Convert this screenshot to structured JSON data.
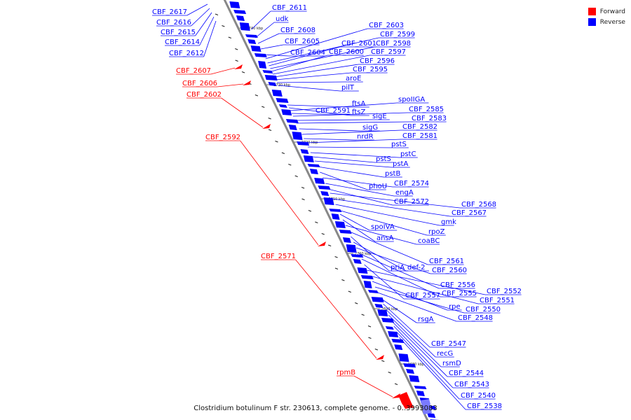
{
  "legend": {
    "items": [
      {
        "label": "Forward",
        "color": "#ff0000"
      },
      {
        "label": "Reverse",
        "color": "#0000ff"
      }
    ]
  },
  "caption": "Clostridium botulinum F str. 230613, complete genome. - 0..3993083",
  "colors": {
    "forward": "#ff0000",
    "reverse": "#0000ff",
    "backbone": "#888888"
  },
  "ticks": [
    "2740 kbp",
    "2730 kbp",
    "2720 kbp",
    "2710 kbp",
    "2700 kbp",
    "2690 kbp",
    "2680 kbp"
  ],
  "reverse_labels": [
    "CBF_2611",
    "udk",
    "CBF_2608",
    "CBF_2605",
    "CBF_2604",
    "CBF_2603",
    "CBF_2599",
    "CBF_2601",
    "CBF_2598",
    "CBF_2600",
    "CBF_2597",
    "CBF_2596",
    "CBF_2595",
    "aroE",
    "pilT",
    "ftsA",
    "ftsZ",
    "spoIIGA",
    "CBF_2591",
    "CBF_2585",
    "sigE",
    "CBF_2583",
    "sigG",
    "CBF_2582",
    "nrdR",
    "CBF_2581",
    "pstS",
    "pstC",
    "pstS",
    "pstA",
    "pstB",
    "phoU",
    "CBF_2574",
    "engA",
    "CBF_2572",
    "CBF_2568",
    "CBF_2567",
    "gmk",
    "rpoZ",
    "spoIVA",
    "ansA",
    "coaBC",
    "CBF_2561",
    "priA",
    "def-2",
    "CBF_2560",
    "CBF_2556",
    "CBF_2555",
    "CBF_2557",
    "CBF_2552",
    "CBF_2551",
    "rpe",
    "CBF_2550",
    "CBF_2548",
    "rsgA",
    "CBF_2547",
    "recG",
    "rsmD",
    "CBF_2544",
    "CBF_2543",
    "CBF_2540",
    "CBF_2538"
  ],
  "left_reverse_labels": [
    "CBF_2617",
    "CBF_2616",
    "CBF_2615",
    "CBF_2614",
    "CBF_2612"
  ],
  "forward_labels": [
    "CBF_2607",
    "CBF_2606",
    "CBF_2602",
    "CBF_2592",
    "CBF_2571",
    "rpmB"
  ]
}
